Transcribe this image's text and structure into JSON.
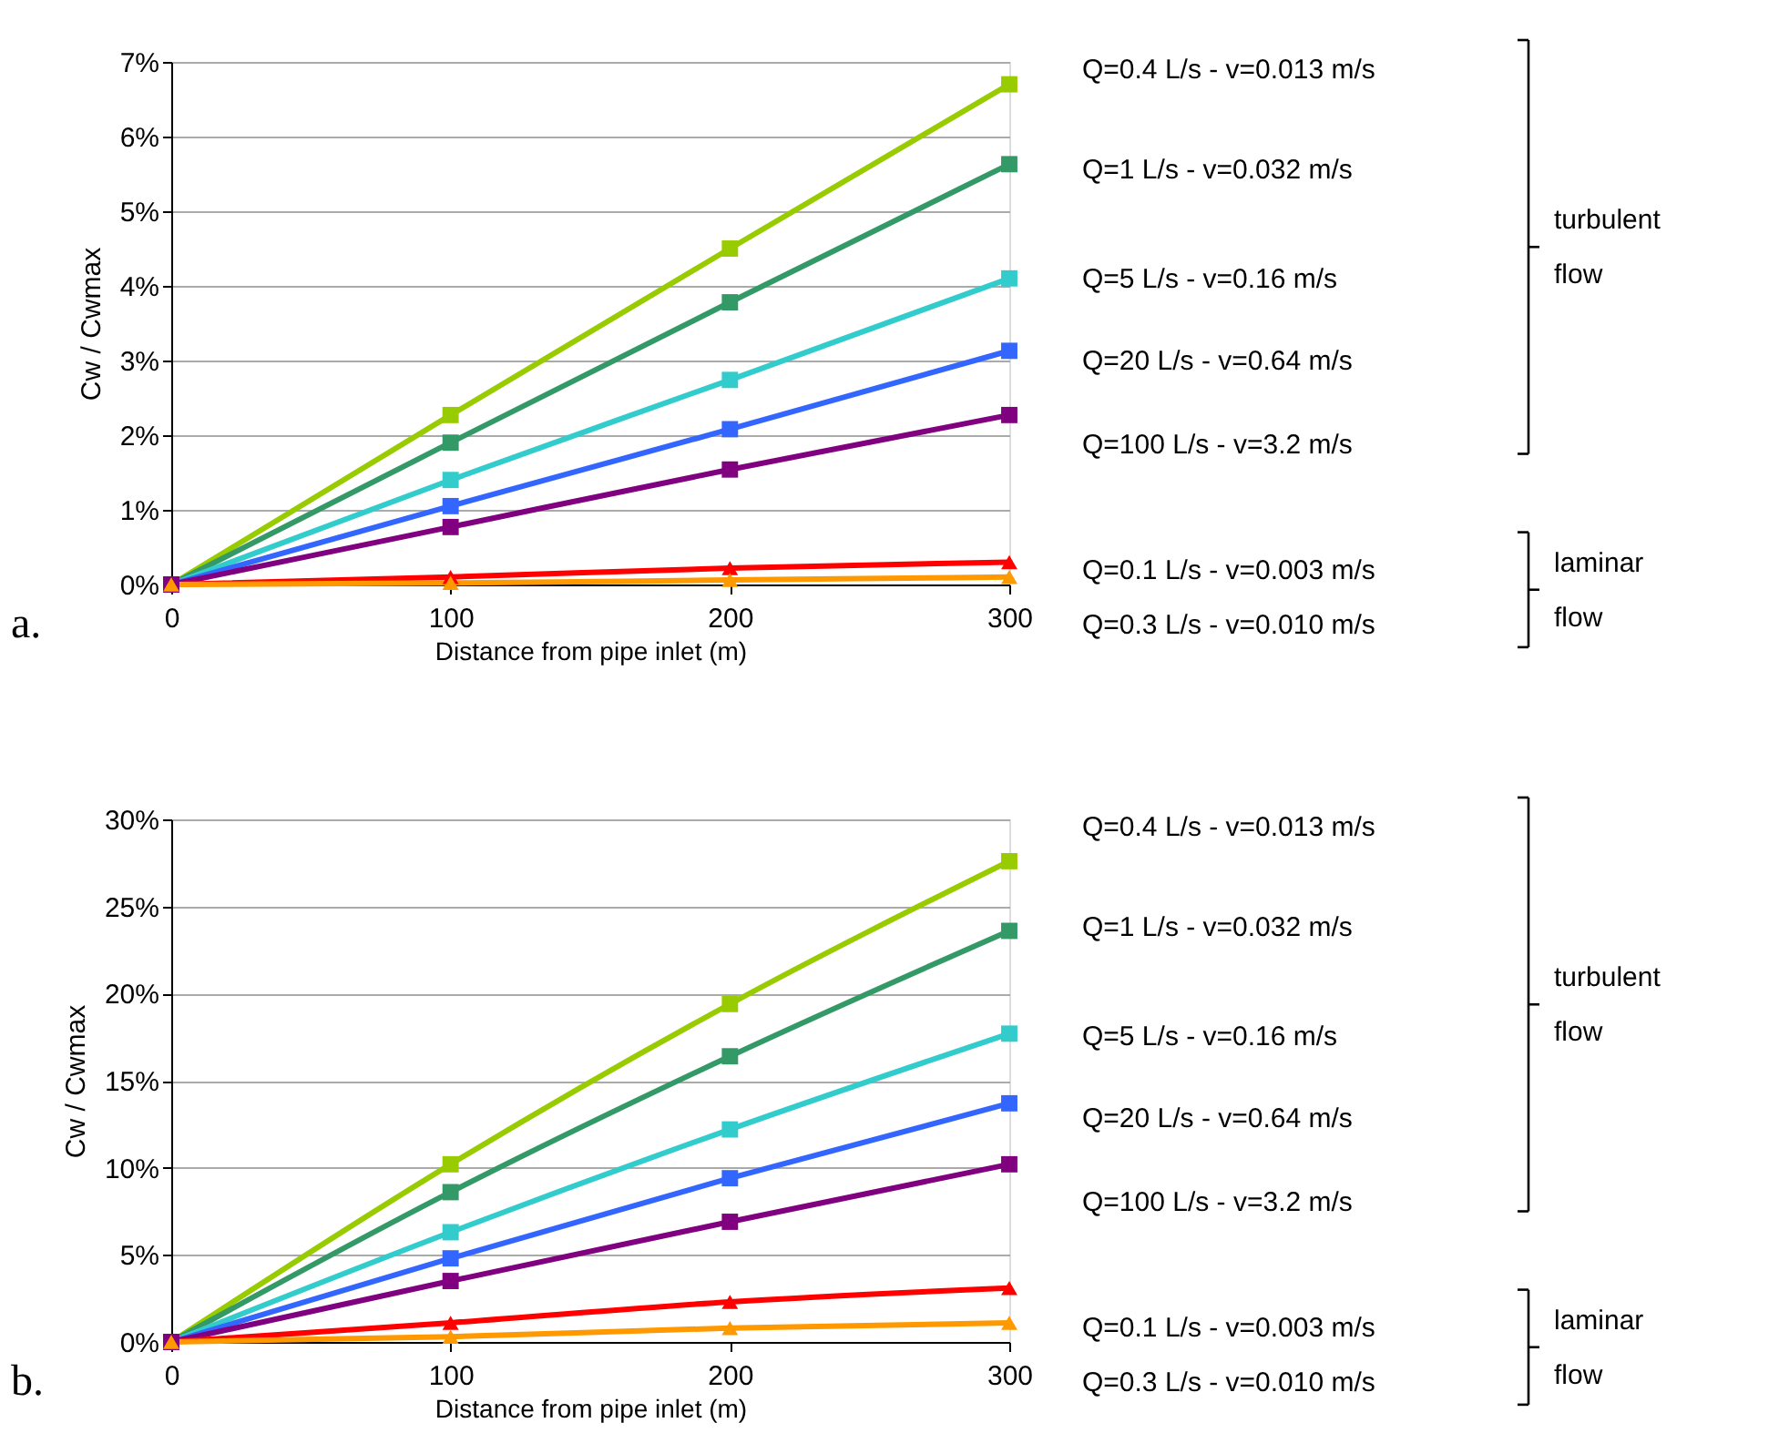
{
  "chart_data": [
    {
      "type": "line",
      "xlabel": "Distance from pipe inlet (m)",
      "ylabel": "Cw / Cwmax",
      "x": [
        0,
        100,
        200,
        300
      ],
      "xlim": [
        0,
        300
      ],
      "xticks": [
        0,
        100,
        200,
        300
      ],
      "ylim": [
        0,
        7
      ],
      "yticks": [
        {
          "value": 0,
          "label": "0%"
        },
        {
          "value": 1,
          "label": "1%"
        },
        {
          "value": 2,
          "label": "2%"
        },
        {
          "value": 3,
          "label": "3%"
        },
        {
          "value": 4,
          "label": "4%"
        },
        {
          "value": 5,
          "label": "5%"
        },
        {
          "value": 6,
          "label": "6%"
        },
        {
          "value": 7,
          "label": "7%"
        }
      ],
      "grid": "y",
      "series": [
        {
          "name": "Q=0.4 L/s - v=0.013 m/s",
          "color": "#99cc00",
          "marker": "square",
          "values": [
            0,
            2.27,
            4.5,
            6.7
          ]
        },
        {
          "name": "Q=1 L/s - v=0.032 m/s",
          "color": "#339966",
          "marker": "square",
          "values": [
            0,
            1.9,
            3.78,
            5.63
          ]
        },
        {
          "name": "Q=5 L/s - v=0.16 m/s",
          "color": "#33cccc",
          "marker": "square",
          "values": [
            0,
            1.4,
            2.74,
            4.1
          ]
        },
        {
          "name": "Q=20 L/s - v=0.64 m/s",
          "color": "#3366ff",
          "marker": "square",
          "values": [
            0,
            1.05,
            2.08,
            3.13
          ]
        },
        {
          "name": "Q=100 L/s - v=3.2 m/s",
          "color": "#800080",
          "marker": "square",
          "values": [
            0,
            0.77,
            1.54,
            2.27
          ]
        },
        {
          "name": "Q=0.1 L/s - v=0.003 m/s",
          "color": "#ff0000",
          "marker": "triangle",
          "values": [
            0,
            0.1,
            0.22,
            0.3
          ]
        },
        {
          "name": "Q=0.3 L/s - v=0.010 m/s",
          "color": "#ff9900",
          "marker": "triangle",
          "values": [
            0,
            0.02,
            0.06,
            0.1
          ]
        }
      ],
      "annotations": [
        "a.",
        "turbulent flow",
        "laminar flow"
      ]
    },
    {
      "type": "line",
      "xlabel": "Distance from pipe inlet (m)",
      "ylabel": "Cw / Cwmax",
      "x": [
        0,
        100,
        200,
        300
      ],
      "xlim": [
        0,
        300
      ],
      "xticks": [
        0,
        100,
        200,
        300
      ],
      "ylim": [
        0,
        30
      ],
      "yticks": [
        {
          "value": 0,
          "label": "0%"
        },
        {
          "value": 5,
          "label": "5%"
        },
        {
          "value": 10,
          "label": "10%"
        },
        {
          "value": 15,
          "label": "15%"
        },
        {
          "value": 20,
          "label": "20%"
        },
        {
          "value": 25,
          "label": "25%"
        },
        {
          "value": 30,
          "label": "30%"
        }
      ],
      "grid": "y",
      "series": [
        {
          "name": "Q=0.4 L/s - v=0.013 m/s",
          "color": "#99cc00",
          "marker": "square",
          "values": [
            0,
            10.2,
            19.4,
            27.6
          ]
        },
        {
          "name": "Q=1 L/s - v=0.032 m/s",
          "color": "#339966",
          "marker": "square",
          "values": [
            0,
            8.6,
            16.4,
            23.6
          ]
        },
        {
          "name": "Q=5 L/s - v=0.16 m/s",
          "color": "#33cccc",
          "marker": "square",
          "values": [
            0,
            6.3,
            12.2,
            17.7
          ]
        },
        {
          "name": "Q=20 L/s - v=0.64 m/s",
          "color": "#3366ff",
          "marker": "square",
          "values": [
            0,
            4.8,
            9.4,
            13.7
          ]
        },
        {
          "name": "Q=100 L/s - v=3.2 m/s",
          "color": "#800080",
          "marker": "square",
          "values": [
            0,
            3.5,
            6.9,
            10.2
          ]
        },
        {
          "name": "Q=0.1 L/s - v=0.003 m/s",
          "color": "#ff0000",
          "marker": "triangle",
          "values": [
            0,
            1.1,
            2.3,
            3.1
          ]
        },
        {
          "name": "Q=0.3 L/s - v=0.010 m/s",
          "color": "#ff9900",
          "marker": "triangle",
          "values": [
            0,
            0.3,
            0.8,
            1.1
          ]
        }
      ],
      "annotations": [
        "b.",
        "turbulent flow",
        "laminar flow"
      ]
    }
  ]
}
